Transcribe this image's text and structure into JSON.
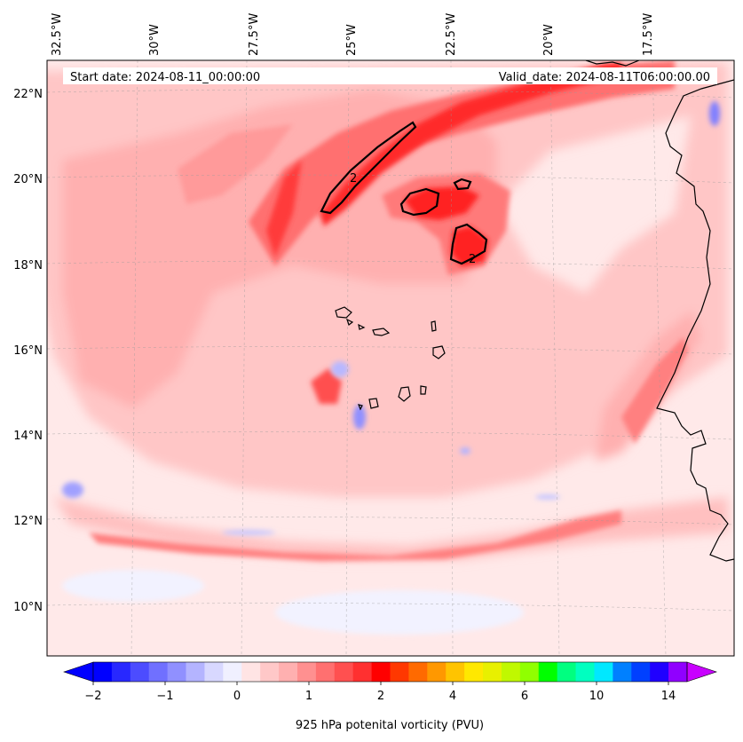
{
  "map": {
    "start_date": "Start date: 2024-08-11_00:00:00",
    "valid_date": "Valid_date: 2024-08-11T06:00:00.00",
    "lon_labels": [
      "32.5°W",
      "30°W",
      "27.5°W",
      "25°W",
      "22.5°W",
      "20°W",
      "17.5°W"
    ],
    "lat_labels": [
      "22°N",
      "20°N",
      "18°N",
      "16°N",
      "14°N",
      "12°N",
      "10°N"
    ],
    "contour_label": "2",
    "field": "925 hPa potential vorticity",
    "region": "Cape Verde / West Africa coast"
  },
  "colorbar": {
    "label": "925 hPa potenital vorticity (PVU)",
    "tick_labels": [
      "−2",
      "−1",
      "0",
      "1",
      "2",
      "4",
      "6",
      "10",
      "14"
    ],
    "colors": [
      "#0000ff",
      "#2828ff",
      "#4c4cff",
      "#7070ff",
      "#9090ff",
      "#b4b4ff",
      "#d8d8ff",
      "#f0f0ff",
      "#ffe4e4",
      "#ffc8c8",
      "#ffb0b0",
      "#ff9090",
      "#ff7070",
      "#ff5050",
      "#ff3030",
      "#ff0000",
      "#ff3800",
      "#ff6a00",
      "#ff9800",
      "#ffc400",
      "#ffe800",
      "#e8f000",
      "#c0f800",
      "#90ff00",
      "#00ff00",
      "#00ff80",
      "#00ffc0",
      "#00e8ff",
      "#0080ff",
      "#0040ff",
      "#2000ff",
      "#9000ff"
    ],
    "min_color": "#0000ff",
    "max_color": "#c800ff"
  }
}
